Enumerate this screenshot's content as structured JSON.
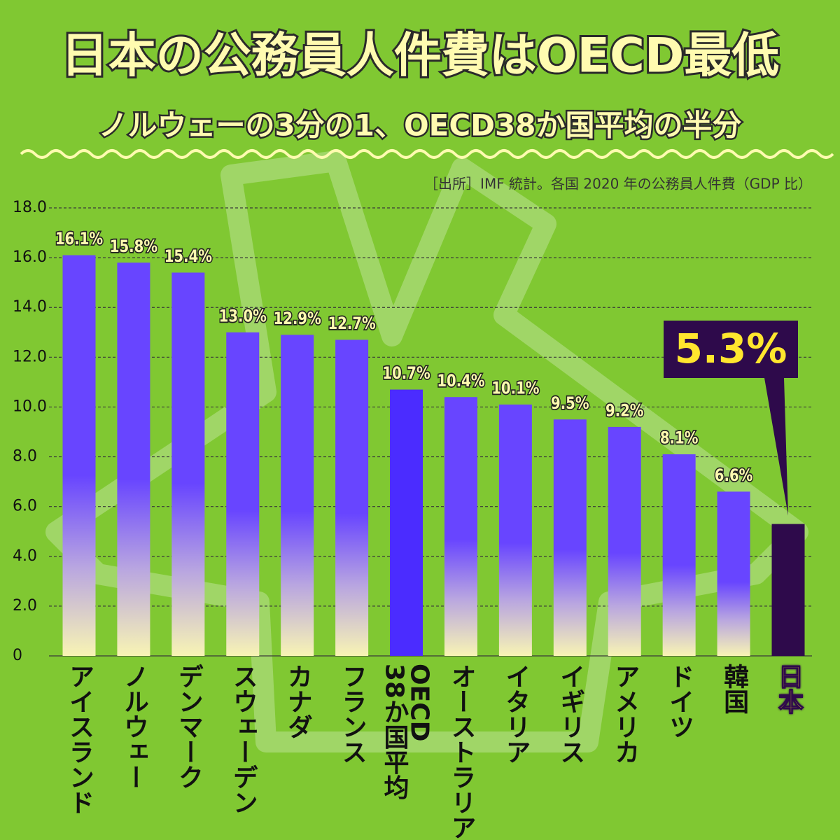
{
  "chart_data": {
    "type": "bar",
    "title": "日本の公務員人件費はOECD最低",
    "subtitle": "ノルウェーの3分の1、OECD38か国平均の半分",
    "source": "［出所］IMF 統計。各国 2020 年の公務員人件費（GDP 比）",
    "categories": [
      "アイスランド",
      "ノルウェー",
      "デンマーク",
      "スウェーデン",
      "カナダ",
      "フランス",
      "OECD\n38か国平均",
      "オーストラリア",
      "イタリア",
      "イギリス",
      "アメリカ",
      "ドイツ",
      "韓国",
      "日本"
    ],
    "values": [
      16.1,
      15.8,
      15.4,
      13.0,
      12.9,
      12.7,
      10.7,
      10.4,
      10.1,
      9.5,
      9.2,
      8.1,
      6.6,
      5.3
    ],
    "value_labels": [
      "16.1%",
      "15.8%",
      "15.4%",
      "13.0%",
      "12.9%",
      "12.7%",
      "10.7%",
      "10.4%",
      "10.1%",
      "9.5%",
      "9.2%",
      "8.1%",
      "6.6%",
      "5.3%"
    ],
    "colors": [
      "#6845ff",
      "#6845ff",
      "#6845ff",
      "#6845ff",
      "#6845ff",
      "#6845ff",
      "#4b2cff",
      "#6845ff",
      "#6845ff",
      "#6845ff",
      "#6845ff",
      "#6845ff",
      "#6845ff",
      "#2e0a4b"
    ],
    "gradient": [
      true,
      true,
      true,
      true,
      true,
      true,
      false,
      true,
      true,
      true,
      true,
      true,
      true,
      false
    ],
    "gradient_bottom": "#f8f4b4",
    "ylim": [
      0,
      18
    ],
    "yticks": [
      0,
      {
        "value": 2,
        "label": "2.0"
      },
      {
        "value": 4,
        "label": "4.0"
      },
      {
        "value": 6,
        "label": "6.0"
      },
      {
        "value": 8,
        "label": "8.0"
      },
      {
        "value": 10,
        "label": "10.0"
      },
      {
        "value": 12,
        "label": "12.0"
      },
      {
        "value": 14,
        "label": "14.0"
      },
      {
        "value": 16,
        "label": "16.0"
      },
      {
        "value": 18,
        "label": "18.0"
      }
    ],
    "grid": true
  }
}
